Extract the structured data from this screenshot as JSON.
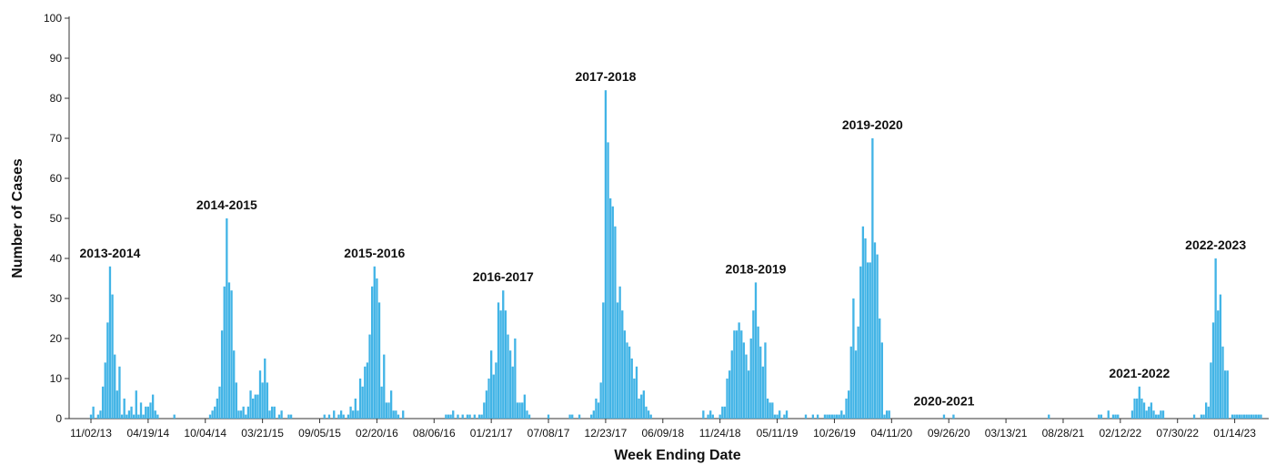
{
  "chart_data": {
    "type": "bar",
    "x_label": "Week Ending Date",
    "y_label": "Number of Cases",
    "color": "#42b4e6",
    "ylim": [
      0,
      100
    ],
    "yticks": [
      0,
      10,
      20,
      30,
      40,
      50,
      60,
      70,
      80,
      90,
      100
    ],
    "annotations": [
      "2013-2014",
      "2014-2015",
      "2015-2016",
      "2016-2017",
      "2017-2018",
      "2018-2019",
      "2019-2020",
      "2020-2021",
      "2021-2022",
      "2022-2023"
    ],
    "categories": [
      "11/02/13",
      null,
      null,
      null,
      null,
      null,
      null,
      null,
      null,
      null,
      null,
      null,
      null,
      null,
      null,
      null,
      null,
      null,
      null,
      null,
      null,
      null,
      null,
      null,
      "04/19/14",
      null,
      null,
      null,
      null,
      null,
      null,
      null,
      null,
      null,
      null,
      null,
      null,
      null,
      null,
      null,
      null,
      null,
      null,
      null,
      null,
      null,
      null,
      null,
      "10/04/14",
      null,
      null,
      null,
      null,
      null,
      null,
      null,
      null,
      null,
      null,
      null,
      null,
      null,
      null,
      null,
      null,
      null,
      null,
      null,
      null,
      null,
      null,
      null,
      "03/21/15",
      null,
      null,
      null,
      null,
      null,
      null,
      null,
      null,
      null,
      null,
      null,
      null,
      null,
      null,
      null,
      null,
      null,
      null,
      null,
      null,
      null,
      null,
      null,
      "09/05/15",
      null,
      null,
      null,
      null,
      null,
      null,
      null,
      null,
      null,
      null,
      null,
      null,
      null,
      null,
      null,
      null,
      null,
      null,
      null,
      null,
      null,
      null,
      null,
      "02/20/16",
      null,
      null,
      null,
      null,
      null,
      null,
      null,
      null,
      null,
      null,
      null,
      null,
      null,
      null,
      null,
      null,
      null,
      null,
      null,
      null,
      null,
      null,
      null,
      "08/06/16",
      null,
      null,
      null,
      null,
      null,
      null,
      null,
      null,
      null,
      null,
      null,
      null,
      null,
      null,
      null,
      null,
      null,
      null,
      null,
      null,
      null,
      null,
      null,
      "01/21/17",
      null,
      null,
      null,
      null,
      null,
      null,
      null,
      null,
      null,
      null,
      null,
      null,
      null,
      null,
      null,
      null,
      null,
      null,
      null,
      null,
      null,
      null,
      null,
      "07/08/17",
      null,
      null,
      null,
      null,
      null,
      null,
      null,
      null,
      null,
      null,
      null,
      null,
      null,
      null,
      null,
      null,
      null,
      null,
      null,
      null,
      null,
      null,
      null,
      "12/23/17",
      null,
      null,
      null,
      null,
      null,
      null,
      null,
      null,
      null,
      null,
      null,
      null,
      null,
      null,
      null,
      null,
      null,
      null,
      null,
      null,
      null,
      null,
      null,
      "06/09/18",
      null,
      null,
      null,
      null,
      null,
      null,
      null,
      null,
      null,
      null,
      null,
      null,
      null,
      null,
      null,
      null,
      null,
      null,
      null,
      null,
      null,
      null,
      null,
      "11/24/18",
      null,
      null,
      null,
      null,
      null,
      null,
      null,
      null,
      null,
      null,
      null,
      null,
      null,
      null,
      null,
      null,
      null,
      null,
      null,
      null,
      null,
      null,
      null,
      "05/11/19",
      null,
      null,
      null,
      null,
      null,
      null,
      null,
      null,
      null,
      null,
      null,
      null,
      null,
      null,
      null,
      null,
      null,
      null,
      null,
      null,
      null,
      null,
      null,
      "10/26/19",
      null,
      null,
      null,
      null,
      null,
      null,
      null,
      null,
      null,
      null,
      null,
      null,
      null,
      null,
      null,
      null,
      null,
      null,
      null,
      null,
      null,
      null,
      null,
      "04/11/20",
      null,
      null,
      null,
      null,
      null,
      null,
      null,
      null,
      null,
      null,
      null,
      null,
      null,
      null,
      null,
      null,
      null,
      null,
      null,
      null,
      null,
      null,
      null,
      "09/26/20",
      null,
      null,
      null,
      null,
      null,
      null,
      null,
      null,
      null,
      null,
      null,
      null,
      null,
      null,
      null,
      null,
      null,
      null,
      null,
      null,
      null,
      null,
      null,
      "03/13/21",
      null,
      null,
      null,
      null,
      null,
      null,
      null,
      null,
      null,
      null,
      null,
      null,
      null,
      null,
      null,
      null,
      null,
      null,
      null,
      null,
      null,
      null,
      null,
      "08/28/21",
      null,
      null,
      null,
      null,
      null,
      null,
      null,
      null,
      null,
      null,
      null,
      null,
      null,
      null,
      null,
      null,
      null,
      null,
      null,
      null,
      null,
      null,
      null,
      "02/12/22",
      null,
      null,
      null,
      null,
      null,
      null,
      null,
      null,
      null,
      null,
      null,
      null,
      null,
      null,
      null,
      null,
      null,
      null,
      null,
      null,
      null,
      null,
      null,
      "07/30/22",
      null,
      null,
      null,
      null,
      null,
      null,
      null,
      null,
      null,
      null,
      null,
      null,
      null,
      null,
      null,
      null,
      null,
      null,
      null,
      null,
      null,
      null,
      null,
      "01/14/23",
      null,
      null,
      null,
      null,
      null,
      null,
      null,
      null,
      null,
      null,
      null
    ],
    "values": [
      1,
      3,
      0,
      1,
      2,
      8,
      14,
      24,
      38,
      31,
      16,
      7,
      13,
      1,
      5,
      1,
      2,
      3,
      1,
      7,
      1,
      4,
      1,
      3,
      3,
      4,
      6,
      2,
      1,
      0,
      0,
      0,
      0,
      0,
      0,
      1,
      0,
      0,
      0,
      0,
      0,
      0,
      0,
      0,
      0,
      0,
      0,
      0,
      0,
      0,
      1,
      2,
      3,
      5,
      8,
      22,
      33,
      50,
      34,
      32,
      17,
      9,
      2,
      2,
      3,
      1,
      3,
      7,
      5,
      6,
      6,
      12,
      9,
      15,
      9,
      2,
      3,
      3,
      0,
      1,
      2,
      0,
      0,
      1,
      1,
      0,
      0,
      0,
      0,
      0,
      0,
      0,
      0,
      0,
      0,
      0,
      0,
      0,
      1,
      0,
      1,
      0,
      2,
      0,
      1,
      2,
      1,
      0,
      1,
      3,
      2,
      5,
      2,
      10,
      8,
      13,
      14,
      21,
      33,
      38,
      35,
      29,
      8,
      16,
      4,
      4,
      7,
      2,
      2,
      1,
      0,
      2,
      0,
      0,
      0,
      0,
      0,
      0,
      0,
      0,
      0,
      0,
      0,
      0,
      0,
      0,
      0,
      0,
      0,
      1,
      1,
      1,
      2,
      0,
      1,
      0,
      1,
      0,
      1,
      1,
      0,
      1,
      0,
      1,
      1,
      4,
      7,
      10,
      17,
      11,
      14,
      29,
      27,
      32,
      27,
      21,
      17,
      13,
      20,
      4,
      4,
      4,
      6,
      2,
      1,
      0,
      0,
      0,
      0,
      0,
      0,
      0,
      1,
      0,
      0,
      0,
      0,
      0,
      0,
      0,
      0,
      1,
      1,
      0,
      0,
      1,
      0,
      0,
      0,
      0,
      1,
      2,
      5,
      4,
      9,
      29,
      82,
      69,
      55,
      53,
      48,
      29,
      33,
      27,
      22,
      19,
      18,
      15,
      10,
      13,
      5,
      6,
      7,
      3,
      2,
      1,
      0,
      0,
      0,
      0,
      0,
      0,
      0,
      0,
      0,
      0,
      0,
      0,
      0,
      0,
      0,
      0,
      0,
      0,
      0,
      0,
      0,
      2,
      0,
      1,
      2,
      1,
      0,
      0,
      1,
      3,
      3,
      10,
      12,
      17,
      22,
      22,
      24,
      22,
      19,
      16,
      12,
      20,
      27,
      34,
      23,
      18,
      13,
      19,
      5,
      4,
      4,
      1,
      1,
      2,
      0,
      1,
      2,
      0,
      0,
      0,
      0,
      0,
      0,
      0,
      1,
      0,
      0,
      1,
      0,
      1,
      0,
      0,
      1,
      1,
      1,
      1,
      1,
      1,
      1,
      2,
      1,
      5,
      7,
      18,
      30,
      17,
      23,
      38,
      48,
      45,
      39,
      39,
      70,
      44,
      41,
      25,
      19,
      1,
      2,
      2,
      0,
      0,
      0,
      0,
      0,
      0,
      0,
      0,
      0,
      0,
      0,
      0,
      0,
      0,
      0,
      0,
      0,
      0,
      0,
      0,
      0,
      0,
      1,
      0,
      0,
      0,
      1,
      0,
      0,
      0,
      0,
      0,
      0,
      0,
      0,
      0,
      0,
      0,
      0,
      0,
      0,
      0,
      0,
      0,
      0,
      0,
      0,
      0,
      0,
      0,
      0,
      0,
      0,
      0,
      0,
      0,
      0,
      0,
      0,
      0,
      0,
      0,
      0,
      0,
      0,
      0,
      1,
      0,
      0,
      0,
      0,
      0,
      0,
      0,
      0,
      0,
      0,
      0,
      0,
      0,
      0,
      0,
      0,
      0,
      0,
      0,
      0,
      1,
      1,
      0,
      0,
      2,
      0,
      1,
      1,
      1,
      0,
      0,
      0,
      0,
      0,
      2,
      5,
      5,
      8,
      5,
      4,
      2,
      3,
      4,
      2,
      1,
      1,
      2,
      2,
      0,
      0,
      0,
      0,
      0,
      0,
      0,
      0,
      0,
      0,
      0,
      0,
      1,
      0,
      0,
      1,
      1,
      4,
      3,
      14,
      24,
      40,
      27,
      31,
      18,
      12,
      12,
      0,
      1,
      1,
      1,
      1,
      1,
      1,
      1,
      1,
      1,
      1,
      1,
      1,
      1
    ]
  }
}
